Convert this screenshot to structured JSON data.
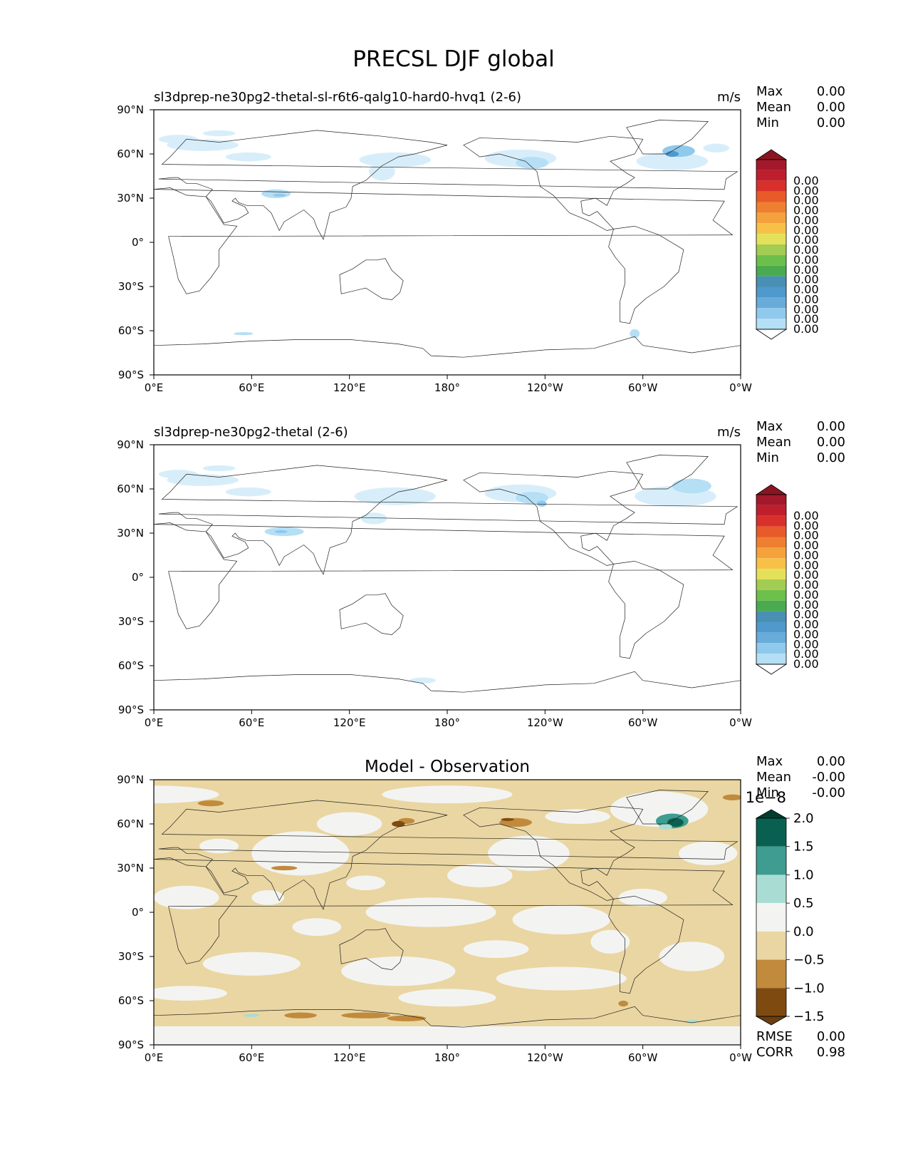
{
  "figure": {
    "title": "PRECSL DJF global"
  },
  "chart_data": [
    {
      "type": "heatmap",
      "subplot": "test",
      "title": "",
      "left_title": "sl3dprep-ne30pg2-thetal-sl-r6t6-qalg10-hard0-hvq1 (2-6)",
      "units": "m/s",
      "stats": [
        {
          "label": "Max",
          "value": "0.00"
        },
        {
          "label": "Mean",
          "value": "0.00"
        },
        {
          "label": "Min",
          "value": "0.00"
        }
      ],
      "xticks": [
        "0°E",
        "60°E",
        "120°E",
        "180°",
        "120°W",
        "60°W",
        "0°W"
      ],
      "yticks": [
        "90°N",
        "60°N",
        "30°N",
        "0°",
        "30°S",
        "60°S",
        "90°S"
      ],
      "xlim": [
        0,
        360
      ],
      "ylim": [
        -90,
        90
      ],
      "colorbar": {
        "colors": [
          "#ffffff",
          "#d7eefa",
          "#b4dff5",
          "#8fc9ec",
          "#69abd9",
          "#4f99cc",
          "#4a8fb4",
          "#4aaa50",
          "#6cbf4a",
          "#a3cc52",
          "#e5e05a",
          "#f7c148",
          "#f5a23d",
          "#ef7f30",
          "#e85a2a",
          "#d8312b",
          "#bf1e2d",
          "#a3182a",
          "#8a1520"
        ],
        "labels": [
          "0.00",
          "0.00",
          "0.00",
          "0.00",
          "0.00",
          "0.00",
          "0.00",
          "0.00",
          "0.00",
          "0.00",
          "0.00",
          "0.00",
          "0.00",
          "0.00",
          "0.00",
          "0.00"
        ],
        "extend": "both"
      }
    },
    {
      "type": "heatmap",
      "subplot": "reference",
      "title": "",
      "left_title": "sl3dprep-ne30pg2-thetal (2-6)",
      "units": "m/s",
      "stats": [
        {
          "label": "Max",
          "value": "0.00"
        },
        {
          "label": "Mean",
          "value": "0.00"
        },
        {
          "label": "Min",
          "value": "0.00"
        }
      ],
      "xticks": [
        "0°E",
        "60°E",
        "120°E",
        "180°",
        "120°W",
        "60°W",
        "0°W"
      ],
      "yticks": [
        "90°N",
        "60°N",
        "30°N",
        "0°",
        "30°S",
        "60°S",
        "90°S"
      ],
      "xlim": [
        0,
        360
      ],
      "ylim": [
        -90,
        90
      ],
      "colorbar": {
        "colors": [
          "#ffffff",
          "#d7eefa",
          "#b4dff5",
          "#8fc9ec",
          "#69abd9",
          "#4f99cc",
          "#4a8fb4",
          "#4aaa50",
          "#6cbf4a",
          "#a3cc52",
          "#e5e05a",
          "#f7c148",
          "#f5a23d",
          "#ef7f30",
          "#e85a2a",
          "#d8312b",
          "#bf1e2d",
          "#a3182a",
          "#8a1520"
        ],
        "labels": [
          "0.00",
          "0.00",
          "0.00",
          "0.00",
          "0.00",
          "0.00",
          "0.00",
          "0.00",
          "0.00",
          "0.00",
          "0.00",
          "0.00",
          "0.00",
          "0.00",
          "0.00",
          "0.00"
        ],
        "extend": "both"
      }
    },
    {
      "type": "heatmap",
      "subplot": "difference",
      "title": "Model - Observation",
      "left_title": "",
      "units": "",
      "stats": [
        {
          "label": "Max",
          "value": "0.00"
        },
        {
          "label": "Mean",
          "value": "-0.00"
        },
        {
          "label": "Min",
          "value": "-0.00"
        }
      ],
      "bottom_stats": [
        {
          "label": "RMSE",
          "value": "0.00"
        },
        {
          "label": "CORR",
          "value": "0.98"
        }
      ],
      "xticks": [
        "0°E",
        "60°E",
        "120°E",
        "180°",
        "120°W",
        "60°W",
        "0°W"
      ],
      "yticks": [
        "90°N",
        "60°N",
        "30°N",
        "0°",
        "30°S",
        "60°S",
        "90°S"
      ],
      "xlim": [
        0,
        360
      ],
      "ylim": [
        -90,
        90
      ],
      "colorbar": {
        "colors": [
          "#6b3e0f",
          "#7f4a10",
          "#c18a3c",
          "#ead6a2",
          "#f3f4f2",
          "#a9ddd4",
          "#3e9c90",
          "#0a6050",
          "#003d30"
        ],
        "labels": [
          "2.0",
          "1.5",
          "1.0",
          "0.5",
          "0.0",
          "−0.5",
          "−1.0",
          "−1.5"
        ],
        "multiplier": "1e−8",
        "extend": "both"
      }
    }
  ]
}
